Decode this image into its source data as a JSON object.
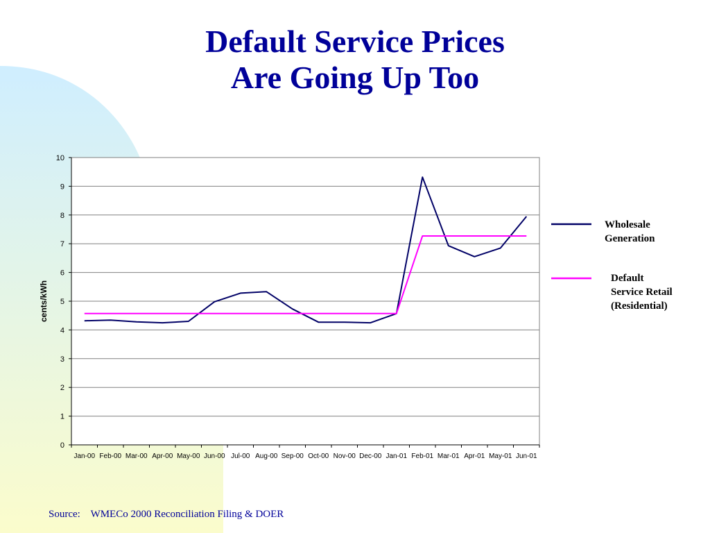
{
  "slide": {
    "title_line1": "Default Service Prices",
    "title_line2": "Are Going Up Too",
    "source_label": "Source:",
    "source_text": "WMECo 2000 Reconciliation Filing & DOER",
    "colors": {
      "title": "#000099",
      "bg_blue": "#cfeeff",
      "bg_yellow": "#fbfccc"
    }
  },
  "chart_data": {
    "type": "line",
    "title": "",
    "xlabel": "",
    "ylabel": "cents/kWh",
    "ylim": [
      0,
      10
    ],
    "yticks": [
      0,
      1,
      2,
      3,
      4,
      5,
      6,
      7,
      8,
      9,
      10
    ],
    "grid": true,
    "legend_position": "right",
    "categories": [
      "Jan-00",
      "Feb-00",
      "Mar-00",
      "Apr-00",
      "May-00",
      "Jun-00",
      "Jul-00",
      "Aug-00",
      "Sep-00",
      "Oct-00",
      "Nov-00",
      "Dec-00",
      "Jan-01",
      "Feb-01",
      "Mar-01",
      "Apr-01",
      "May-01",
      "Jun-01"
    ],
    "series": [
      {
        "name": "Wholesale Generation",
        "legend_lines": [
          "Wholesale",
          "Generation"
        ],
        "color": "#000066",
        "values": [
          4.32,
          4.34,
          4.28,
          4.25,
          4.3,
          4.98,
          5.28,
          5.33,
          4.73,
          4.27,
          4.27,
          4.25,
          4.57,
          9.32,
          6.93,
          6.55,
          6.85,
          7.95
        ]
      },
      {
        "name": "Default Service Retail (Residential)",
        "legend_lines": [
          "Default",
          "Service Retail",
          "(Residential)"
        ],
        "color": "#ff00ff",
        "values": [
          4.57,
          4.57,
          4.57,
          4.57,
          4.57,
          4.57,
          4.57,
          4.57,
          4.57,
          4.57,
          4.57,
          4.57,
          4.57,
          7.27,
          7.27,
          7.27,
          7.27,
          7.27
        ]
      }
    ]
  }
}
